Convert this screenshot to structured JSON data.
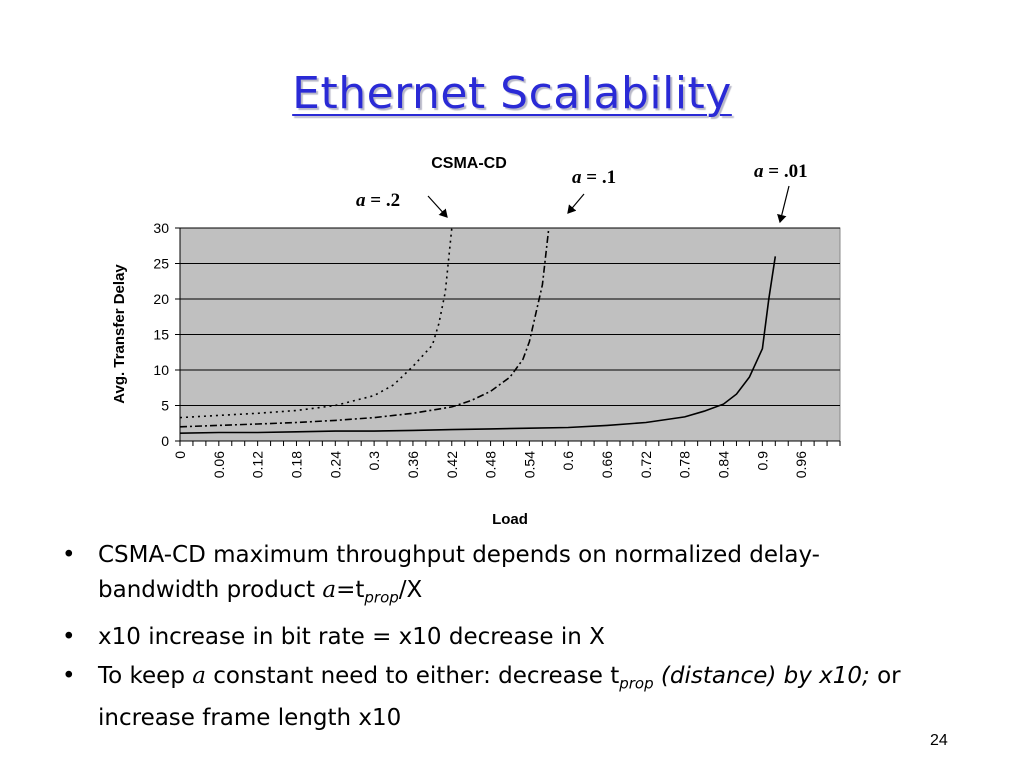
{
  "slide": {
    "title": "Ethernet Scalability",
    "page_number": "24"
  },
  "chart_data": {
    "type": "line",
    "title": "CSMA-CD",
    "xlabel": "Load",
    "ylabel": "Avg. Transfer Delay",
    "ylim": [
      0,
      30
    ],
    "yticks": [
      "0",
      "5",
      "10",
      "15",
      "20",
      "25",
      "30"
    ],
    "xticks": [
      "0",
      "0.06",
      "0.12",
      "0.18",
      "0.24",
      "0.3",
      "0.36",
      "0.42",
      "0.48",
      "0.54",
      "0.6",
      "0.66",
      "0.72",
      "0.78",
      "0.84",
      "0.9",
      "0.96"
    ],
    "grid": true,
    "background": "#c0c0c0",
    "series": [
      {
        "style": "dashed-dotted",
        "x": [
          0,
          0.06,
          0.12,
          0.18,
          0.24,
          0.3,
          0.33,
          0.36,
          0.39,
          0.4,
          0.41,
          0.42
        ],
        "y": [
          3.3,
          3.6,
          3.9,
          4.3,
          5.0,
          6.4,
          7.9,
          10.5,
          13.5,
          16.5,
          21.0,
          30.0
        ]
      },
      {
        "style": "dash-dot",
        "x": [
          0,
          0.06,
          0.12,
          0.18,
          0.24,
          0.3,
          0.36,
          0.42,
          0.45,
          0.48,
          0.51,
          0.53,
          0.54,
          0.55,
          0.56,
          0.57
        ],
        "y": [
          2.0,
          2.2,
          2.4,
          2.6,
          2.9,
          3.3,
          3.9,
          4.8,
          5.7,
          7.0,
          9.0,
          11.5,
          14.0,
          18.0,
          22.0,
          30.0
        ]
      },
      {
        "style": "solid",
        "x": [
          0,
          0.06,
          0.12,
          0.18,
          0.24,
          0.3,
          0.36,
          0.42,
          0.48,
          0.54,
          0.6,
          0.66,
          0.72,
          0.78,
          0.81,
          0.84,
          0.86,
          0.88,
          0.89,
          0.9,
          0.91,
          0.92
        ],
        "y": [
          1.1,
          1.2,
          1.2,
          1.3,
          1.4,
          1.4,
          1.5,
          1.6,
          1.7,
          1.8,
          1.9,
          2.2,
          2.6,
          3.4,
          4.2,
          5.2,
          6.6,
          9.0,
          11.0,
          13.0,
          20.0,
          26.0
        ]
      }
    ],
    "annotations": [
      {
        "var": "a",
        "text": " = .2"
      },
      {
        "var": "a",
        "text": " = .1"
      },
      {
        "var": "a",
        "text": " = .01"
      }
    ]
  },
  "bullets": [
    {
      "part1": "CSMA-CD maximum throughput depends on normalized delay-bandwidth product ",
      "var": "a",
      "eq": "=t",
      "sub": "prop",
      "tail": "/X"
    },
    {
      "text": "x10 increase in bit rate = x10 decrease in X"
    },
    {
      "part1": "To keep ",
      "var": "a",
      "part2": " constant need to either:  decrease t",
      "sub": "prop",
      "italic": " (distance) by x10;",
      "tail": " or increase frame length x10"
    }
  ],
  "bullet_symbol": "•"
}
